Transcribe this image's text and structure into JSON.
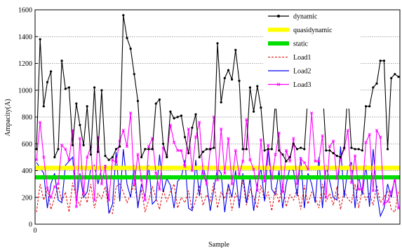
{
  "chart_data": {
    "type": "line",
    "title": "",
    "xlabel": "Sample",
    "ylabel": "Ampacity(A)",
    "xlim": [
      0,
      130
    ],
    "ylim": [
      0,
      1600
    ],
    "x_ticks": [
      "0"
    ],
    "y_ticks": [
      0,
      200,
      400,
      600,
      800,
      1000,
      1200,
      1400,
      1600
    ],
    "grid": "horizontal dotted",
    "legend_position": "top-right",
    "series": [
      {
        "name": "dynamic",
        "color": "#000000",
        "style": "solid-dots",
        "values": [
          560,
          1380,
          880,
          1060,
          1140,
          500,
          560,
          1220,
          1010,
          1020,
          590,
          900,
          740,
          590,
          880,
          520,
          1020,
          540,
          1000,
          510,
          480,
          500,
          560,
          580,
          1560,
          1390,
          1310,
          1120,
          920,
          500,
          560,
          560,
          560,
          900,
          930,
          600,
          500,
          840,
          790,
          800,
          810,
          650,
          530,
          720,
          820,
          500,
          540,
          560,
          560,
          570,
          1350,
          910,
          1090,
          1150,
          1080,
          1300,
          1070,
          560,
          560,
          1020,
          840,
          1030,
          870,
          550,
          560,
          560,
          920,
          550,
          520,
          470,
          500,
          600,
          560,
          570,
          560,
          970,
          960,
          880,
          890,
          1030,
          550,
          550,
          530,
          510,
          500,
          570,
          990,
          570,
          560,
          560,
          550,
          880,
          880,
          1020,
          1050,
          1220,
          1220,
          560,
          1090,
          1120,
          1100
        ]
      },
      {
        "name": "quasidynamic",
        "color": "#ffff00",
        "style": "thick",
        "values": [
          420,
          420
        ]
      },
      {
        "name": "static",
        "color": "#00dd00",
        "style": "thick",
        "values": [
          350,
          350
        ]
      },
      {
        "name": "Load1",
        "color": "#e00000",
        "style": "dashed",
        "values": [
          90,
          300,
          180,
          260,
          110,
          200,
          280,
          170,
          240,
          90,
          310,
          200,
          140,
          260,
          160,
          300,
          120,
          230,
          190,
          280,
          100,
          80,
          280,
          300,
          240,
          160,
          220,
          300,
          150,
          260,
          90,
          180,
          280,
          200,
          110,
          260,
          170,
          240,
          300,
          120,
          200,
          160,
          250,
          100,
          180,
          290,
          140,
          220,
          170,
          310,
          120,
          240,
          190,
          280,
          100,
          230,
          170,
          330,
          140,
          260,
          200,
          120,
          290,
          180,
          240,
          100,
          270,
          160,
          300,
          130,
          220,
          180,
          260,
          110,
          290,
          150,
          240,
          200,
          120,
          300,
          170,
          230,
          140,
          280,
          110,
          250,
          190,
          160,
          300,
          120,
          260,
          180,
          230,
          140,
          290,
          160,
          200,
          250,
          110,
          90,
          250
        ]
      },
      {
        "name": "Load2",
        "color": "#0000ee",
        "style": "solid",
        "values": [
          460,
          420,
          380,
          120,
          300,
          380,
          180,
          160,
          440,
          470,
          500,
          160,
          380,
          200,
          240,
          420,
          440,
          300,
          420,
          440,
          80,
          150,
          540,
          170,
          560,
          300,
          200,
          440,
          120,
          300,
          200,
          440,
          150,
          180,
          520,
          240,
          340,
          290,
          120,
          320,
          350,
          480,
          120,
          100,
          480,
          210,
          440,
          310,
          100,
          260,
          420,
          380,
          90,
          300,
          200,
          400,
          120,
          380,
          160,
          340,
          100,
          300,
          420,
          170,
          560,
          260,
          220,
          400,
          120,
          300,
          420,
          400,
          210,
          500,
          120,
          380,
          300,
          160,
          500,
          120,
          440,
          320,
          200,
          180,
          580,
          200,
          420,
          460,
          120,
          360,
          220,
          440,
          130,
          560,
          240,
          60,
          120,
          300,
          200,
          350,
          130
        ]
      },
      {
        "name": "Load3",
        "color": "#ff00ff",
        "style": "solid-x",
        "values": [
          480,
          760,
          500,
          270,
          200,
          280,
          300,
          590,
          560,
          480,
          700,
          130,
          640,
          230,
          500,
          580,
          180,
          650,
          300,
          430,
          180,
          480,
          460,
          620,
          700,
          580,
          830,
          300,
          520,
          330,
          180,
          580,
          640,
          380,
          260,
          570,
          510,
          740,
          610,
          550,
          550,
          430,
          710,
          400,
          650,
          760,
          380,
          300,
          560,
          800,
          330,
          710,
          380,
          640,
          300,
          550,
          370,
          470,
          780,
          480,
          410,
          250,
          630,
          320,
          590,
          340,
          520,
          680,
          240,
          550,
          470,
          640,
          300,
          490,
          460,
          410,
          830,
          470,
          470,
          660,
          200,
          580,
          620,
          340,
          490,
          560,
          700,
          310,
          510,
          260,
          260,
          610,
          670,
          250,
          700,
          650,
          150,
          170,
          240,
          330,
          120
        ]
      }
    ]
  }
}
